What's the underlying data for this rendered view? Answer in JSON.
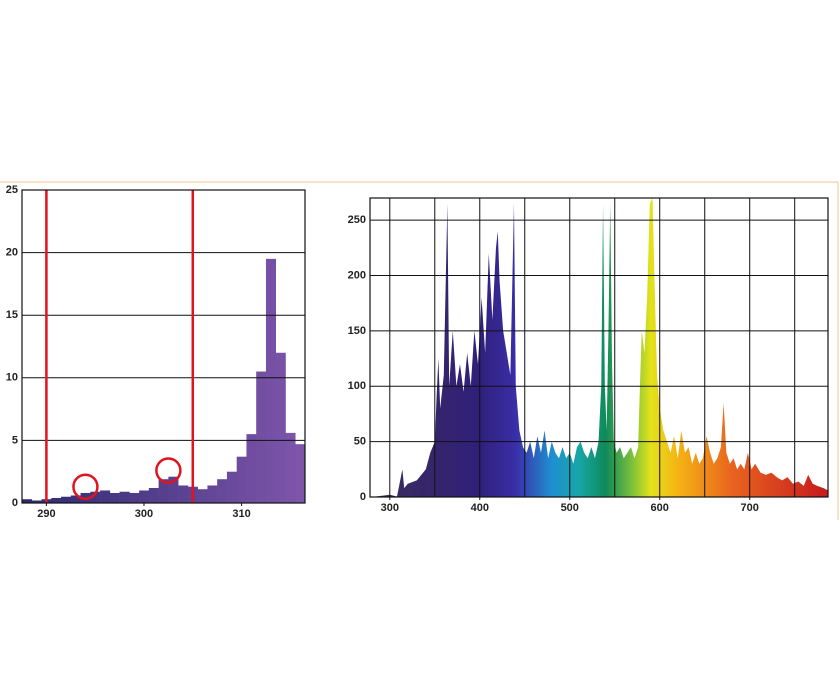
{
  "chart_data": [
    {
      "type": "histogram",
      "bins": [
        287.5,
        288.5,
        289.5,
        290.5,
        291.5,
        292.5,
        293.5,
        294.5,
        295.5,
        296.5,
        297.5,
        298.5,
        299.5,
        300.5,
        301.5,
        302.5,
        303.5,
        304.5,
        305.5,
        306.5,
        307.5,
        308.5,
        309.5,
        310.5,
        311.5,
        312.5,
        313.5,
        314.5,
        315.5,
        316.5
      ],
      "counts": [
        0.3,
        0.2,
        0.3,
        0.4,
        0.5,
        0.6,
        0.8,
        0.9,
        1.0,
        0.8,
        0.9,
        0.8,
        1.0,
        1.2,
        1.9,
        2.1,
        1.4,
        1.3,
        1.1,
        1.4,
        1.9,
        2.5,
        3.7,
        5.5,
        10.5,
        19.5,
        12,
        5.6,
        4.7
      ],
      "color_start": "#2e2a72",
      "color_end": "#7e55aa",
      "xlim": [
        287.5,
        316.5
      ],
      "xticks": [
        290,
        300,
        310
      ],
      "ylim": [
        0,
        25
      ],
      "yticks": [
        0,
        5,
        10,
        15,
        20,
        25
      ],
      "grid": true,
      "vlines": [
        290,
        305
      ],
      "vline_color": "#e0141e",
      "circles": [
        {
          "x": 294,
          "y": 1.3
        },
        {
          "x": 302.5,
          "y": 2.6
        }
      ],
      "circle_color": "#e0141e"
    },
    {
      "type": "area",
      "x": [
        280,
        290,
        300,
        305,
        308,
        314,
        316,
        320,
        330,
        340,
        345,
        350,
        352,
        354,
        356,
        360,
        364,
        366,
        370,
        374,
        378,
        382,
        386,
        390,
        394,
        398,
        402,
        406,
        410,
        414,
        418,
        420,
        422,
        426,
        430,
        434,
        438,
        440,
        444,
        448,
        452,
        456,
        460,
        464,
        468,
        472,
        476,
        480,
        484,
        488,
        492,
        496,
        500,
        504,
        508,
        512,
        516,
        520,
        524,
        528,
        532,
        535,
        537,
        539,
        541,
        543,
        545,
        547,
        549,
        552,
        556,
        560,
        564,
        568,
        572,
        576,
        578,
        580,
        583,
        586,
        589,
        592,
        594,
        597,
        600,
        604,
        608,
        612,
        616,
        620,
        624,
        628,
        632,
        636,
        640,
        644,
        648,
        652,
        656,
        660,
        664,
        668,
        671,
        674,
        678,
        682,
        686,
        690,
        694,
        698,
        702,
        706,
        712,
        718,
        724,
        730,
        736,
        742,
        748,
        754,
        760,
        765,
        770,
        775,
        782,
        787
      ],
      "values": [
        0,
        1,
        2,
        1,
        0.5,
        25,
        8,
        12,
        15,
        25,
        40,
        50,
        90,
        125,
        80,
        110,
        265,
        100,
        150,
        100,
        120,
        95,
        130,
        100,
        150,
        120,
        180,
        130,
        220,
        160,
        225,
        240,
        195,
        150,
        130,
        110,
        265,
        100,
        60,
        45,
        40,
        50,
        35,
        55,
        40,
        60,
        35,
        50,
        40,
        35,
        45,
        35,
        40,
        30,
        45,
        50,
        40,
        35,
        45,
        35,
        50,
        100,
        265,
        100,
        60,
        150,
        265,
        120,
        50,
        40,
        45,
        35,
        40,
        45,
        35,
        45,
        100,
        150,
        130,
        180,
        265,
        270,
        200,
        110,
        80,
        60,
        50,
        40,
        55,
        35,
        60,
        40,
        45,
        30,
        40,
        30,
        35,
        55,
        40,
        30,
        35,
        45,
        85,
        40,
        30,
        35,
        25,
        30,
        25,
        40,
        25,
        30,
        22,
        20,
        22,
        18,
        15,
        18,
        12,
        14,
        10,
        20,
        12,
        10,
        8,
        6
      ],
      "gradient": [
        {
          "x": 300,
          "color": "#3a2a5e"
        },
        {
          "x": 400,
          "color": "#30207a"
        },
        {
          "x": 440,
          "color": "#3a2ea8"
        },
        {
          "x": 480,
          "color": "#1f8fd0"
        },
        {
          "x": 510,
          "color": "#17a6a8"
        },
        {
          "x": 540,
          "color": "#0f8a5a"
        },
        {
          "x": 570,
          "color": "#7fc23a"
        },
        {
          "x": 590,
          "color": "#e4e21a"
        },
        {
          "x": 620,
          "color": "#f5b414"
        },
        {
          "x": 680,
          "color": "#e8641e"
        },
        {
          "x": 780,
          "color": "#c81e1e"
        }
      ],
      "xlim": [
        278,
        787
      ],
      "xticks": [
        300,
        400,
        500,
        600,
        700
      ],
      "xgrid": [
        350,
        450,
        550,
        650,
        750
      ],
      "ylim": [
        0,
        270
      ],
      "yticks": [
        0,
        50,
        100,
        150,
        200,
        250
      ],
      "grid": true
    }
  ]
}
